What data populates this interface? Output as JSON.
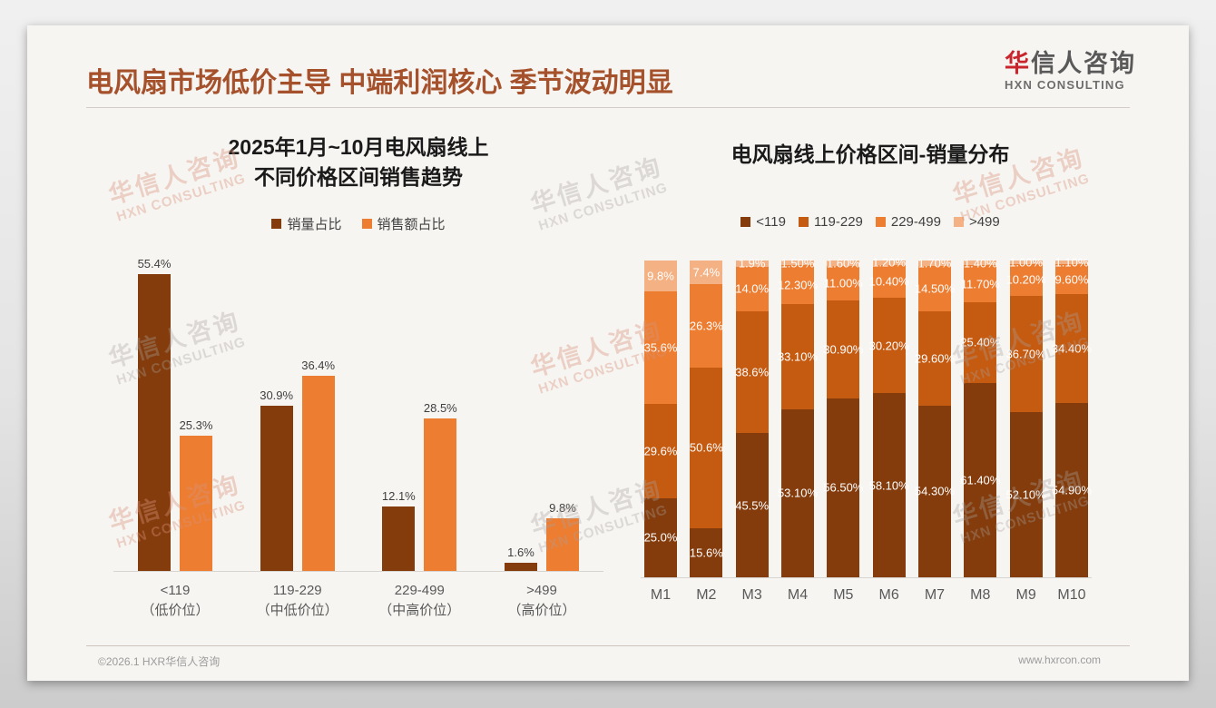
{
  "header": {
    "title": "电风扇市场低价主导 中端利润核心 季节波动明显",
    "logo_zh_first": "华",
    "logo_zh_rest": "信人咨询",
    "logo_en": "HXN CONSULTING"
  },
  "watermark": {
    "zh": "华信人咨询",
    "en": "HXN CONSULTING"
  },
  "footer": {
    "left": "©2026.1 HXR华信人咨询",
    "right": "www.hxrcon.com"
  },
  "colors": {
    "title_brown": "#a5512b",
    "logo_red": "#c9252c",
    "series_dark": "#843C0C",
    "series_mid": "#C55A11",
    "series_orange": "#ED7D31",
    "series_light": "#F4B183"
  },
  "chart_data": [
    {
      "type": "bar",
      "stacked": false,
      "title_lines": [
        "2025年1月~10月电风扇线上",
        "不同价格区间销售趋势"
      ],
      "categories": [
        {
          "range": "<119",
          "tier": "（低价位）"
        },
        {
          "range": "119-229",
          "tier": "（中低价位）"
        },
        {
          "range": "229-499",
          "tier": "（中高价位）"
        },
        {
          "range": ">499",
          "tier": "（高价位）"
        }
      ],
      "series": [
        {
          "name": "销量占比",
          "color": "#843C0C",
          "values": [
            55.4,
            30.9,
            12.1,
            1.6
          ],
          "labels": [
            "55.4%",
            "30.9%",
            "12.1%",
            "1.6%"
          ]
        },
        {
          "name": "销售额占比",
          "color": "#ED7D31",
          "values": [
            25.3,
            36.4,
            28.5,
            9.8
          ],
          "labels": [
            "25.3%",
            "36.4%",
            "28.5%",
            "9.8%"
          ]
        }
      ],
      "ylim": [
        0,
        60
      ],
      "grid": false,
      "legend_position": "top"
    },
    {
      "type": "bar",
      "stacked": true,
      "title": "电风扇线上价格区间-销量分布",
      "categories": [
        "M1",
        "M2",
        "M3",
        "M4",
        "M5",
        "M6",
        "M7",
        "M8",
        "M9",
        "M10"
      ],
      "series": [
        {
          "name": "<119",
          "color": "#843C0C",
          "values": [
            25.0,
            15.6,
            45.5,
            53.1,
            56.5,
            58.1,
            54.3,
            61.4,
            52.1,
            54.9
          ],
          "labels": [
            "25.0%",
            "15.6%",
            "45.5%",
            "53.10%",
            "56.50%",
            "58.10%",
            "54.30%",
            "61.40%",
            "52.10%",
            "54.90%"
          ]
        },
        {
          "name": "119-229",
          "color": "#C55A11",
          "values": [
            29.6,
            50.6,
            38.6,
            33.1,
            30.9,
            30.2,
            29.6,
            25.4,
            36.7,
            34.4
          ],
          "labels": [
            "29.6%",
            "50.6%",
            "38.6%",
            "33.10%",
            "30.90%",
            "30.20%",
            "29.60%",
            "25.40%",
            "36.70%",
            "34.40%"
          ]
        },
        {
          "name": "229-499",
          "color": "#ED7D31",
          "values": [
            35.6,
            26.3,
            14.0,
            12.3,
            11.0,
            10.4,
            14.5,
            11.7,
            10.2,
            9.6
          ],
          "labels": [
            "35.6%",
            "26.3%",
            "14.0%",
            "12.30%",
            "11.00%",
            "10.40%",
            "14.50%",
            "11.70%",
            "10.20%",
            "9.60%"
          ]
        },
        {
          "name": ">499",
          "color": "#F4B183",
          "values": [
            9.8,
            7.4,
            1.9,
            1.5,
            1.6,
            1.2,
            1.7,
            1.4,
            1.0,
            1.1
          ],
          "labels": [
            "9.8%",
            "7.4%",
            "1.9%",
            "1.50%",
            "1.60%",
            "1.20%",
            "1.70%",
            "1.40%",
            "1.00%",
            "1.10%"
          ]
        }
      ],
      "ylim": [
        0,
        100
      ],
      "grid": false,
      "legend_position": "top"
    }
  ]
}
